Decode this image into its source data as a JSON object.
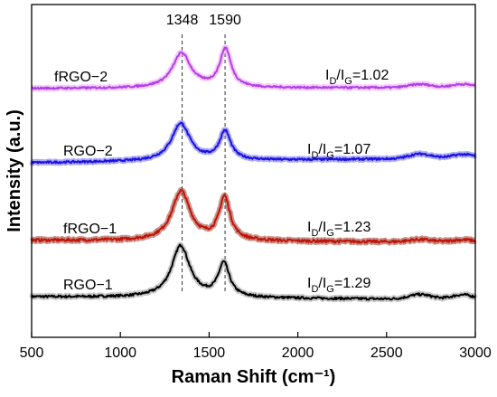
{
  "chart_data": {
    "type": "line",
    "xlabel": "Raman Shift (cm⁻¹)",
    "ylabel": "Intensity (a.u.)",
    "xlim": [
      500,
      3000
    ],
    "xticks": [
      500,
      1000,
      1500,
      2000,
      2500,
      3000
    ],
    "yticks_shown": false,
    "grid": false,
    "legend": "none",
    "peak_markers": [
      {
        "x": 1348,
        "label": "1348"
      },
      {
        "x": 1590,
        "label": "1590"
      }
    ],
    "series": [
      {
        "name": "RGO−1",
        "ratio_text": "I_D/I_G=1.29",
        "color": "#000000",
        "halo": "#9a9a9a",
        "baseline": 0.4,
        "tail_end": 0.34,
        "d_height": 1.5,
        "g_height": 0.95,
        "d_x": 1340,
        "g_x": 1583,
        "second_order": [
          {
            "x": 2690,
            "h": 0.1
          },
          {
            "x": 2930,
            "h": 0.1
          }
        ],
        "noise": 0.025,
        "offset": 0
      },
      {
        "name": "fRGO−1",
        "ratio_text": "I_D/I_G=1.23",
        "color": "#c0140a",
        "halo": "#9b3a2a",
        "baseline": 0.4,
        "tail_end": 0.36,
        "d_height": 1.45,
        "g_height": 1.15,
        "d_x": 1342,
        "g_x": 1587,
        "second_order": [
          {
            "x": 2690,
            "h": 0.05
          },
          {
            "x": 2930,
            "h": 0.05
          }
        ],
        "noise": 0.03,
        "offset": 1.2
      },
      {
        "name": "RGO−2",
        "ratio_text": "I_D/I_G=1.07",
        "color": "#1a10e0",
        "halo": "#6a66ee",
        "baseline": 0.4,
        "tail_end": 0.5,
        "d_height": 1.2,
        "g_height": 0.85,
        "d_x": 1340,
        "g_x": 1590,
        "second_order": [
          {
            "x": 2690,
            "h": 0.1
          },
          {
            "x": 2930,
            "h": 0.08
          }
        ],
        "noise": 0.022,
        "offset": 2.85
      },
      {
        "name": "fRGO−2",
        "ratio_text": "I_D/I_G=1.02",
        "color": "#b040e8",
        "halo": "#f0a0f8",
        "baseline": 0.38,
        "tail_end": 0.4,
        "d_height": 1.12,
        "g_height": 1.05,
        "d_x": 1345,
        "g_x": 1592,
        "second_order": [
          {
            "x": 2690,
            "h": 0.07
          },
          {
            "x": 2930,
            "h": 0.07
          }
        ],
        "noise": 0.02,
        "offset": 4.45
      }
    ]
  }
}
